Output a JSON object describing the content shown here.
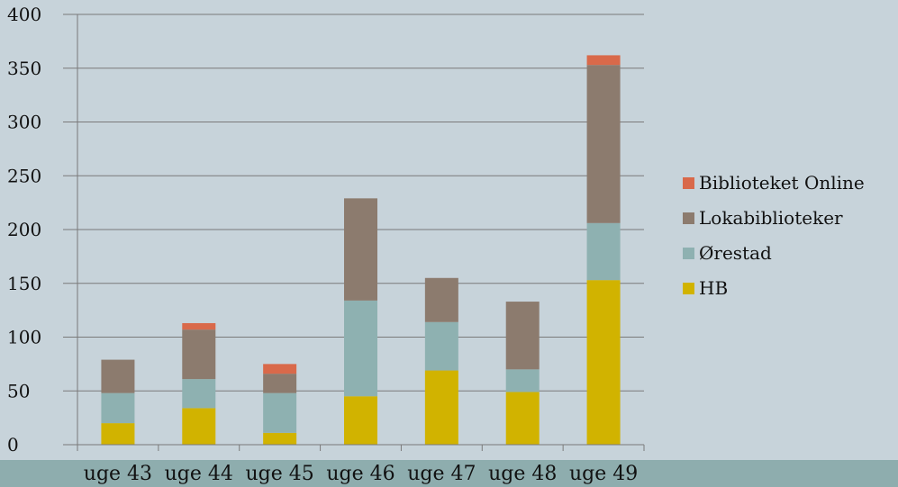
{
  "chart_data": {
    "type": "bar",
    "stacked": true,
    "categories": [
      "uge 43",
      "uge 44",
      "uge 45",
      "uge 46",
      "uge 47",
      "uge 48",
      "uge 49"
    ],
    "series": [
      {
        "name": "HB",
        "color": "#d1b300",
        "values": [
          20,
          34,
          11,
          45,
          69,
          49,
          153
        ]
      },
      {
        "name": "Ørestad",
        "color": "#8eb1b1",
        "values": [
          28,
          27,
          37,
          89,
          45,
          21,
          53
        ]
      },
      {
        "name": "Lokabiblioteker",
        "color": "#8c7b6e",
        "values": [
          31,
          46,
          18,
          95,
          41,
          63,
          147
        ]
      },
      {
        "name": "Biblioteket Online",
        "color": "#d9694a",
        "values": [
          0,
          6,
          9,
          0,
          0,
          0,
          9
        ]
      }
    ],
    "ylim": [
      0,
      400
    ],
    "yticks": [
      0,
      50,
      100,
      150,
      200,
      250,
      300,
      350,
      400
    ],
    "grid": true,
    "legend": "right",
    "title": "",
    "xlabel": "",
    "ylabel": ""
  }
}
